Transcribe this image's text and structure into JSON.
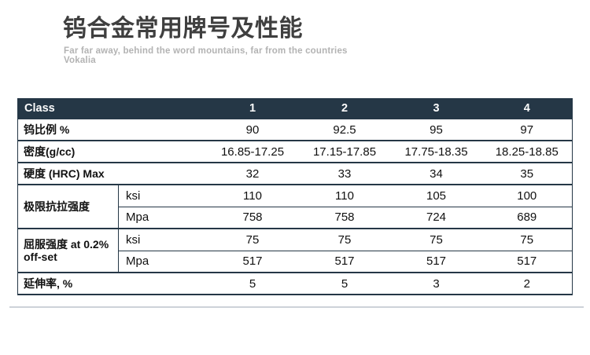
{
  "title": "钨合金常用牌号及性能",
  "subtitle_line1": "Far far away, behind the word mountains, far from the countries",
  "subtitle_line2": "Vokalia",
  "colors": {
    "header_bg": "#253746",
    "table_line": "#253746",
    "title": "#3f3f3f",
    "subtitle": "#b3b3b3"
  },
  "table": {
    "header": {
      "label": "Class",
      "columns": [
        "1",
        "2",
        "3",
        "4"
      ]
    },
    "rows": [
      {
        "label": "钨比例 %",
        "values": [
          "90",
          "92.5",
          "95",
          "97"
        ]
      },
      {
        "label": "密度(g/cc)",
        "values": [
          "16.85-17.25",
          "17.15-17.85",
          "17.75-18.35",
          "18.25-18.85"
        ]
      },
      {
        "label": "硬度 (HRC) Max",
        "values": [
          "32",
          "33",
          "34",
          "35"
        ]
      },
      {
        "label": "极限抗拉强度",
        "sub": [
          {
            "unit": "ksi",
            "values": [
              "110",
              "110",
              "105",
              "100"
            ]
          },
          {
            "unit": "Mpa",
            "values": [
              "758",
              "758",
              "724",
              "689"
            ]
          }
        ]
      },
      {
        "label": "屈服强度 at 0.2% off-set",
        "sub": [
          {
            "unit": "ksi",
            "values": [
              "75",
              "75",
              "75",
              "75"
            ]
          },
          {
            "unit": "Mpa",
            "values": [
              "517",
              "517",
              "517",
              "517"
            ]
          }
        ]
      },
      {
        "label": "延伸率, %",
        "values": [
          "5",
          "5",
          "3",
          "2"
        ]
      }
    ]
  }
}
